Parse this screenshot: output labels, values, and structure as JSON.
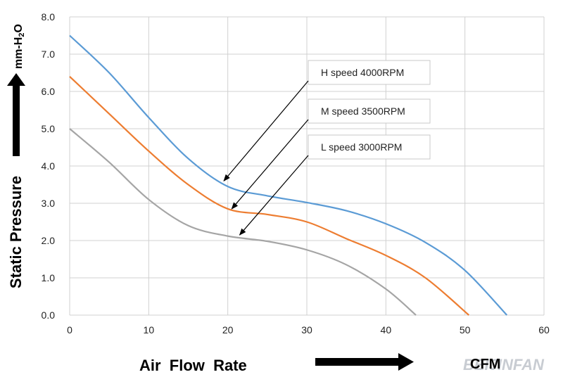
{
  "chart_data": {
    "type": "line",
    "xlabel": "Air  Flow  Rate",
    "ylabel": "Static   Pressure",
    "x_unit": "CFM",
    "y_unit": "mm-H2O",
    "xlim": [
      0,
      60
    ],
    "ylim": [
      0,
      8
    ],
    "x_ticks": [
      "0",
      "10",
      "20",
      "30",
      "40",
      "50",
      "60"
    ],
    "y_ticks": [
      "0.0",
      "1.0",
      "2.0",
      "3.0",
      "4.0",
      "5.0",
      "6.0",
      "7.0",
      "8.0"
    ],
    "grid": true,
    "series": [
      {
        "name": "H  speed  4000RPM",
        "color": "#5b9bd5",
        "x": [
          0,
          5,
          10,
          15,
          20,
          25,
          30,
          35,
          40,
          45,
          50,
          55.3
        ],
        "y": [
          7.5,
          6.5,
          5.3,
          4.2,
          3.45,
          3.2,
          3.02,
          2.8,
          2.45,
          1.95,
          1.2,
          0.0
        ]
      },
      {
        "name": "M  speed   3500RPM",
        "color": "#ed7d31",
        "x": [
          0,
          5,
          10,
          15,
          20,
          25,
          30,
          35,
          40,
          45,
          50.5
        ],
        "y": [
          6.4,
          5.4,
          4.4,
          3.5,
          2.85,
          2.7,
          2.5,
          2.05,
          1.6,
          1.0,
          0.0
        ]
      },
      {
        "name": "L  speed  3000RPM",
        "color": "#a5a5a5",
        "x": [
          0,
          5,
          10,
          15,
          20,
          25,
          30,
          35,
          40,
          43.8
        ],
        "y": [
          5.0,
          4.1,
          3.1,
          2.4,
          2.12,
          1.98,
          1.75,
          1.35,
          0.7,
          0.0
        ]
      }
    ],
    "annotations": [
      {
        "text": "H  speed  4000RPM",
        "target": [
          19.5,
          3.6
        ]
      },
      {
        "text": "M  speed   3500RPM",
        "target": [
          20.5,
          2.85
        ]
      },
      {
        "text": "L  speed  3000RPM",
        "target": [
          21.5,
          2.15
        ]
      }
    ]
  },
  "watermark": "BEIJINFAN"
}
